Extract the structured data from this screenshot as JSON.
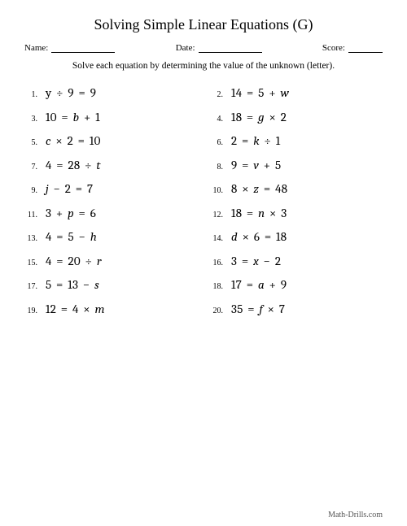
{
  "title": "Solving Simple Linear Equations (G)",
  "header": {
    "name_label": "Name:",
    "date_label": "Date:",
    "score_label": "Score:"
  },
  "instructions": "Solve each equation by determining the value of the unknown (letter).",
  "problems": [
    {
      "n": "1.",
      "eq_html": "<span class='n'>y</span> <span class='op'>÷</span> <span class='n'>9</span> <span class='op'>=</span> <span class='n'>9</span>"
    },
    {
      "n": "2.",
      "eq_html": "<span class='n'>14</span> <span class='op'>=</span> <span class='n'>5</span> <span class='op'>+</span> <span>w</span>"
    },
    {
      "n": "3.",
      "eq_html": "<span class='n'>10</span> <span class='op'>=</span> <span>b</span> <span class='op'>+</span> <span class='n'>1</span>"
    },
    {
      "n": "4.",
      "eq_html": "<span class='n'>18</span> <span class='op'>=</span> <span>g</span> <span class='op'>×</span> <span class='n'>2</span>"
    },
    {
      "n": "5.",
      "eq_html": "<span>c</span> <span class='op'>×</span> <span class='n'>2</span> <span class='op'>=</span> <span class='n'>10</span>"
    },
    {
      "n": "6.",
      "eq_html": "<span class='n'>2</span> <span class='op'>=</span> <span>k</span> <span class='op'>÷</span> <span class='n'>1</span>"
    },
    {
      "n": "7.",
      "eq_html": "<span class='n'>4</span> <span class='op'>=</span> <span class='n'>28</span> <span class='op'>÷</span> <span>t</span>"
    },
    {
      "n": "8.",
      "eq_html": "<span class='n'>9</span> <span class='op'>=</span> <span>v</span> <span class='op'>+</span> <span class='n'>5</span>"
    },
    {
      "n": "9.",
      "eq_html": "<span>j</span> <span class='op'>−</span> <span class='n'>2</span> <span class='op'>=</span> <span class='n'>7</span>"
    },
    {
      "n": "10.",
      "eq_html": "<span class='n'>8</span> <span class='op'>×</span> <span>z</span> <span class='op'>=</span> <span class='n'>48</span>"
    },
    {
      "n": "11.",
      "eq_html": "<span class='n'>3</span> <span class='op'>+</span> <span>p</span> <span class='op'>=</span> <span class='n'>6</span>"
    },
    {
      "n": "12.",
      "eq_html": "<span class='n'>18</span> <span class='op'>=</span> <span>n</span> <span class='op'>×</span> <span class='n'>3</span>"
    },
    {
      "n": "13.",
      "eq_html": "<span class='n'>4</span> <span class='op'>=</span> <span class='n'>5</span> <span class='op'>−</span> <span>h</span>"
    },
    {
      "n": "14.",
      "eq_html": "<span>d</span> <span class='op'>×</span> <span class='n'>6</span> <span class='op'>=</span> <span class='n'>18</span>"
    },
    {
      "n": "15.",
      "eq_html": "<span class='n'>4</span> <span class='op'>=</span> <span class='n'>20</span> <span class='op'>÷</span> <span>r</span>"
    },
    {
      "n": "16.",
      "eq_html": "<span class='n'>3</span> <span class='op'>=</span> <span>x</span> <span class='op'>−</span> <span class='n'>2</span>"
    },
    {
      "n": "17.",
      "eq_html": "<span class='n'>5</span> <span class='op'>=</span> <span class='n'>13</span> <span class='op'>−</span> <span>s</span>"
    },
    {
      "n": "18.",
      "eq_html": "<span class='n'>17</span> <span class='op'>=</span> <span>a</span> <span class='op'>+</span> <span class='n'>9</span>"
    },
    {
      "n": "19.",
      "eq_html": "<span class='n'>12</span> <span class='op'>=</span> <span class='n'>4</span> <span class='op'>×</span> <span>m</span>"
    },
    {
      "n": "20.",
      "eq_html": "<span class='n'>35</span> <span class='op'>=</span> <span>f</span> <span class='op'>×</span> <span class='n'>7</span>"
    }
  ],
  "footer": "Math-Drills.com"
}
